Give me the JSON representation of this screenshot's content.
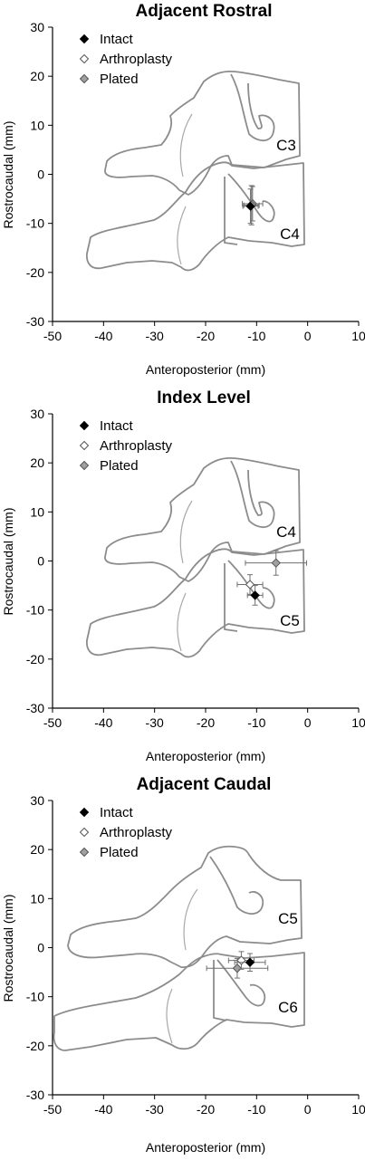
{
  "chart_data": [
    {
      "type": "scatter",
      "title": "Adjacent Rostral",
      "xlabel": "Anteroposterior (mm)",
      "ylabel": "Rostrocaudal (mm)",
      "xlim": [
        -50,
        10
      ],
      "ylim": [
        -30,
        30
      ],
      "xticks": [
        "-50",
        "-40",
        "-30",
        "-20",
        "-10",
        "0",
        "10"
      ],
      "yticks": [
        "30",
        "20",
        "10",
        "0",
        "-10",
        "-20",
        "-30"
      ],
      "legend_position": "top-left",
      "grid": false,
      "vertebra_labels": [
        "C3",
        "C4"
      ],
      "series": [
        {
          "name": "Intact",
          "color": "#000000",
          "x": -11.2,
          "y": -6.5,
          "xerr": 1.5,
          "yerr": 3.5
        },
        {
          "name": "Arthroplasty",
          "color": "#ffffff",
          "x": -11.0,
          "y": -6.3,
          "xerr": 1.5,
          "yerr": 4.0
        },
        {
          "name": "Plated",
          "color": "#a0a0a0",
          "x": -10.8,
          "y": -6.0,
          "xerr": 2.0,
          "yerr": 3.5
        }
      ]
    },
    {
      "type": "scatter",
      "title": "Index Level",
      "xlabel": "Anteroposterior (mm)",
      "ylabel": "Rostrocaudal (mm)",
      "xlim": [
        -50,
        10
      ],
      "ylim": [
        -30,
        30
      ],
      "xticks": [
        "-50",
        "-40",
        "-30",
        "-20",
        "-10",
        "0",
        "10"
      ],
      "yticks": [
        "30",
        "20",
        "10",
        "0",
        "-10",
        "-20",
        "-30"
      ],
      "legend_position": "top-left",
      "grid": false,
      "vertebra_labels": [
        "C4",
        "C5"
      ],
      "series": [
        {
          "name": "Intact",
          "color": "#000000",
          "x": -10.3,
          "y": -7.0,
          "xerr": 1.5,
          "yerr": 2.0
        },
        {
          "name": "Arthroplasty",
          "color": "#ffffff",
          "x": -11.3,
          "y": -4.8,
          "xerr": 2.5,
          "yerr": 2.0
        },
        {
          "name": "Plated",
          "color": "#a0a0a0",
          "x": -6.2,
          "y": -0.4,
          "xerr": 6.0,
          "yerr": 2.5
        }
      ]
    },
    {
      "type": "scatter",
      "title": "Adjacent Caudal",
      "xlabel": "Anteroposterior (mm)",
      "ylabel": "Rostrocaudal (mm)",
      "xlim": [
        -50,
        10
      ],
      "ylim": [
        -30,
        30
      ],
      "xticks": [
        "-50",
        "-40",
        "-30",
        "-20",
        "-10",
        "0",
        "10"
      ],
      "yticks": [
        "30",
        "20",
        "10",
        "0",
        "-10",
        "-20",
        "-30"
      ],
      "legend_position": "top-left",
      "grid": false,
      "vertebra_labels": [
        "C5",
        "C6"
      ],
      "series": [
        {
          "name": "Intact",
          "color": "#000000",
          "x": -11.3,
          "y": -3.0,
          "xerr": 3.0,
          "yerr": 1.8
        },
        {
          "name": "Arthroplasty",
          "color": "#ffffff",
          "x": -13.0,
          "y": -2.6,
          "xerr": 2.5,
          "yerr": 1.8
        },
        {
          "name": "Plated",
          "color": "#a0a0a0",
          "x": -13.8,
          "y": -4.2,
          "xerr": 6.0,
          "yerr": 2.0
        }
      ]
    }
  ]
}
